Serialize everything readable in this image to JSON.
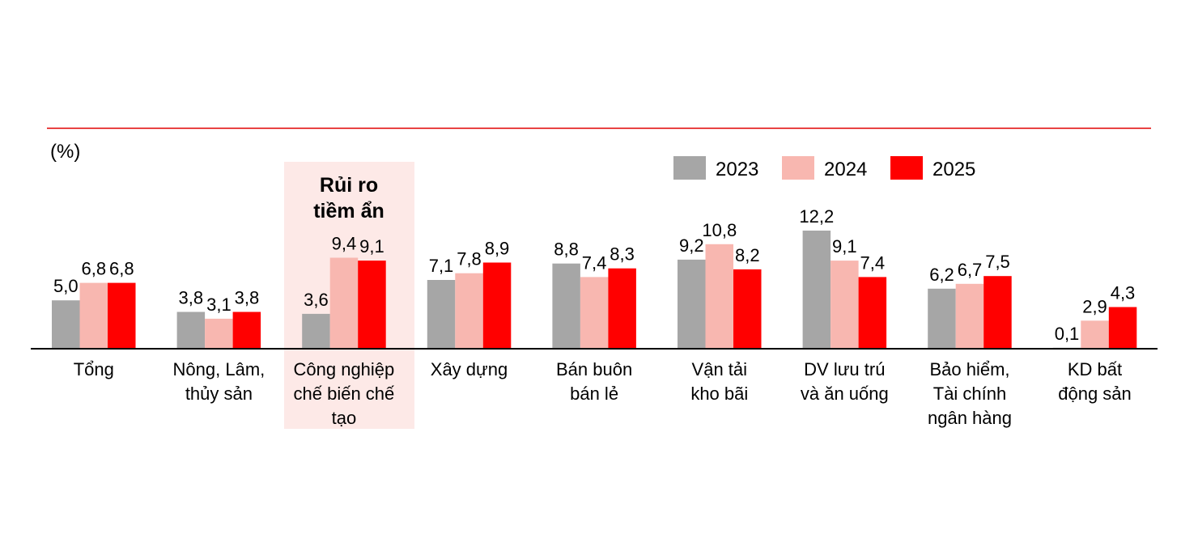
{
  "chart_data": {
    "type": "bar",
    "unit_label": "(%)",
    "categories": [
      [
        "Tổng"
      ],
      [
        "Nông, Lâm,",
        "thủy sản"
      ],
      [
        "Công nghiệp",
        "chế biến chế",
        "tạo"
      ],
      [
        "Xây dựng"
      ],
      [
        "Bán buôn",
        "bán lẻ"
      ],
      [
        "Vận tải",
        "kho bãi"
      ],
      [
        "DV lưu trú",
        "và ăn uống"
      ],
      [
        "Bảo hiểm,",
        "Tài chính",
        "ngân hàng"
      ],
      [
        "KD bất",
        "động sản"
      ]
    ],
    "series": [
      {
        "name": "2023",
        "color": "#a6a6a6",
        "values": [
          5.0,
          3.8,
          3.6,
          7.1,
          8.8,
          9.2,
          12.2,
          6.2,
          0.1
        ],
        "labels": [
          "5,0",
          "3,8",
          "3,6",
          "7,1",
          "8,8",
          "9,2",
          "12,2",
          "6,2",
          "0,1"
        ]
      },
      {
        "name": "2024",
        "color": "#f8b7b0",
        "values": [
          6.8,
          3.1,
          9.4,
          7.8,
          7.4,
          10.8,
          9.1,
          6.7,
          2.9
        ],
        "labels": [
          "6,8",
          "3,1",
          "9,4",
          "7,8",
          "7,4",
          "10,8",
          "9,1",
          "6,7",
          "2,9"
        ]
      },
      {
        "name": "2025",
        "color": "#ff0000",
        "values": [
          6.8,
          3.8,
          9.1,
          8.9,
          8.3,
          8.2,
          7.4,
          7.5,
          4.3
        ],
        "labels": [
          "6,8",
          "3,8",
          "9,1",
          "8,9",
          "8,3",
          "8,2",
          "7,4",
          "7,5",
          "4,3"
        ]
      }
    ],
    "ylim": [
      0,
      12.2
    ],
    "legend_position": "top-right",
    "highlight": {
      "category_index": 2,
      "text": [
        "Rủi ro",
        "tiềm ẩn"
      ],
      "text_color": "#c00000",
      "background": "#fde9e7"
    },
    "top_rule_color": "#e00000",
    "axis_color": "#000000"
  }
}
